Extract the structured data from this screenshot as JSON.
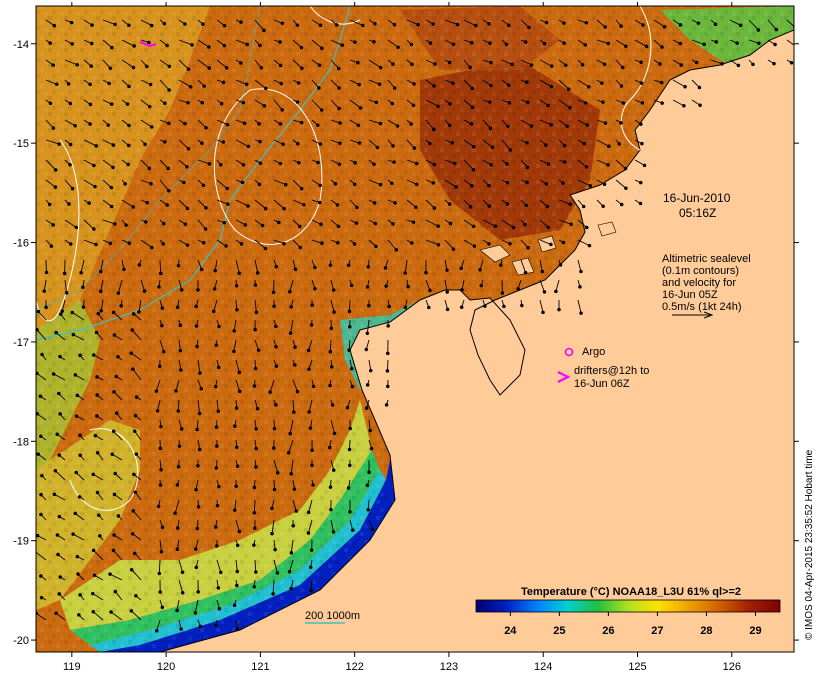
{
  "map": {
    "x_ticks": [
      "119",
      "120",
      "121",
      "122",
      "123",
      "124",
      "125",
      "126"
    ],
    "y_ticks": [
      "-14",
      "-15",
      "-16",
      "-17",
      "-18",
      "-19",
      "-20"
    ],
    "date_line1": "16-Jun-2010",
    "date_line2": "05:16Z",
    "legend_lines": [
      "Altimetric sealevel",
      "(0.1m contours)",
      "and velocity for",
      "16-Jun 05Z",
      "0.5m/s (1kt 24h)"
    ],
    "argo_label": "Argo",
    "drifter_lines": [
      "drifters@12h to",
      "16-Jun 06Z"
    ],
    "bathy_label": "200  1000m",
    "side_credit": "© IMOS 04-Apr-2015 23:35:52 Hobart time"
  },
  "colorbar": {
    "title": "Temperature (°C) NOAA18_L3U 61% ql>=2",
    "ticks": [
      "24",
      "25",
      "26",
      "27",
      "28",
      "29"
    ],
    "tick_values": [
      24,
      25,
      26,
      27,
      28,
      29
    ],
    "range": [
      23.3,
      29.5
    ],
    "stops": [
      "#000070",
      "#0020c0",
      "#0080ff",
      "#00d0d0",
      "#20c040",
      "#b0e020",
      "#ffe000",
      "#f0a000",
      "#d06000",
      "#a02000",
      "#800000"
    ]
  },
  "colors": {
    "land": "#ffcc99",
    "argo": "#ff00ff",
    "drifter": "#ff00ff",
    "bathy_200": "#40c0c0",
    "sealevel_contour": "#ffffff"
  }
}
